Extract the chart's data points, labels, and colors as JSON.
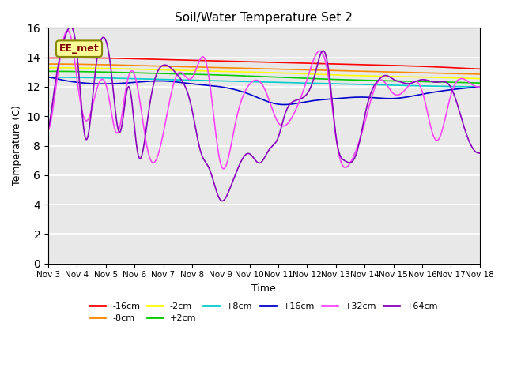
{
  "title": "Soil/Water Temperature Set 2",
  "xlabel": "Time",
  "ylabel": "Temperature (C)",
  "ylim": [
    0,
    16
  ],
  "yticks": [
    0,
    2,
    4,
    6,
    8,
    10,
    12,
    14,
    16
  ],
  "x_labels": [
    "Nov 3",
    "Nov 4",
    "Nov 5",
    "Nov 6",
    "Nov 7",
    "Nov 8",
    "Nov 9",
    "Nov 10",
    "Nov 11",
    "Nov 12",
    "Nov 13",
    "Nov 14",
    "Nov 15",
    "Nov 16",
    "Nov 17",
    "Nov 18"
  ],
  "annotation_text": "EE_met",
  "bg_color": "#e8e8e8",
  "series": [
    {
      "label": "-16cm",
      "color": "#ff0000"
    },
    {
      "label": "-8cm",
      "color": "#ff8800"
    },
    {
      "label": "-2cm",
      "color": "#ffff00"
    },
    {
      "label": "+2cm",
      "color": "#00cc00"
    },
    {
      "label": "+8cm",
      "color": "#00cccc"
    },
    {
      "label": "+16cm",
      "color": "#0000cc"
    },
    {
      "label": "+32cm",
      "color": "#ff44ff"
    },
    {
      "label": "+64cm",
      "color": "#8800bb"
    }
  ]
}
